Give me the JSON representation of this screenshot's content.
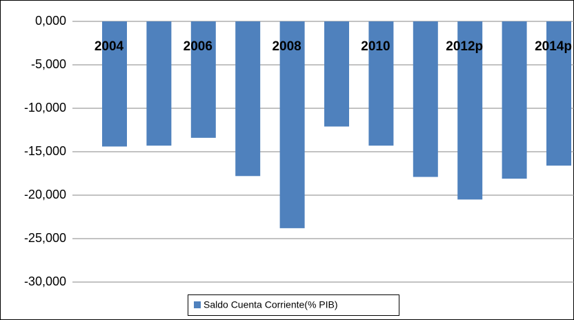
{
  "chart_data": {
    "type": "bar",
    "categories": [
      "2004",
      null,
      "2006",
      null,
      "2008",
      null,
      "2010",
      null,
      "2012p",
      null,
      "2014p"
    ],
    "series": [
      {
        "name": "Saldo Cuenta Corriente(% PIB)",
        "color": "#4f81bd",
        "values": [
          -14400,
          -14300,
          -13400,
          -17800,
          -23800,
          -12100,
          -14300,
          -17900,
          -20500,
          -18100,
          -16600
        ]
      }
    ],
    "ylim": [
      -34000,
      0
    ],
    "yticks": [
      {
        "value": 0,
        "label": "0,000"
      },
      {
        "value": -5000,
        "label": "-5,000"
      },
      {
        "value": -10000,
        "label": "-10,000"
      },
      {
        "value": -15000,
        "label": "-15,000"
      },
      {
        "value": -20000,
        "label": "-20,000"
      },
      {
        "value": -25000,
        "label": "-25,000"
      },
      {
        "value": -30000,
        "label": "-30,000"
      }
    ],
    "grid": true,
    "legend": "bottom"
  }
}
